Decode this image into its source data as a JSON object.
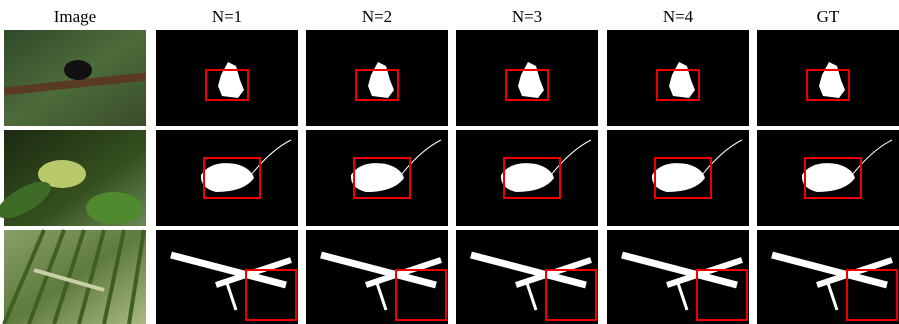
{
  "header": {
    "columns": [
      "Image",
      "N=1",
      "N=2",
      "N=3",
      "N=4",
      "GT"
    ]
  }
}
